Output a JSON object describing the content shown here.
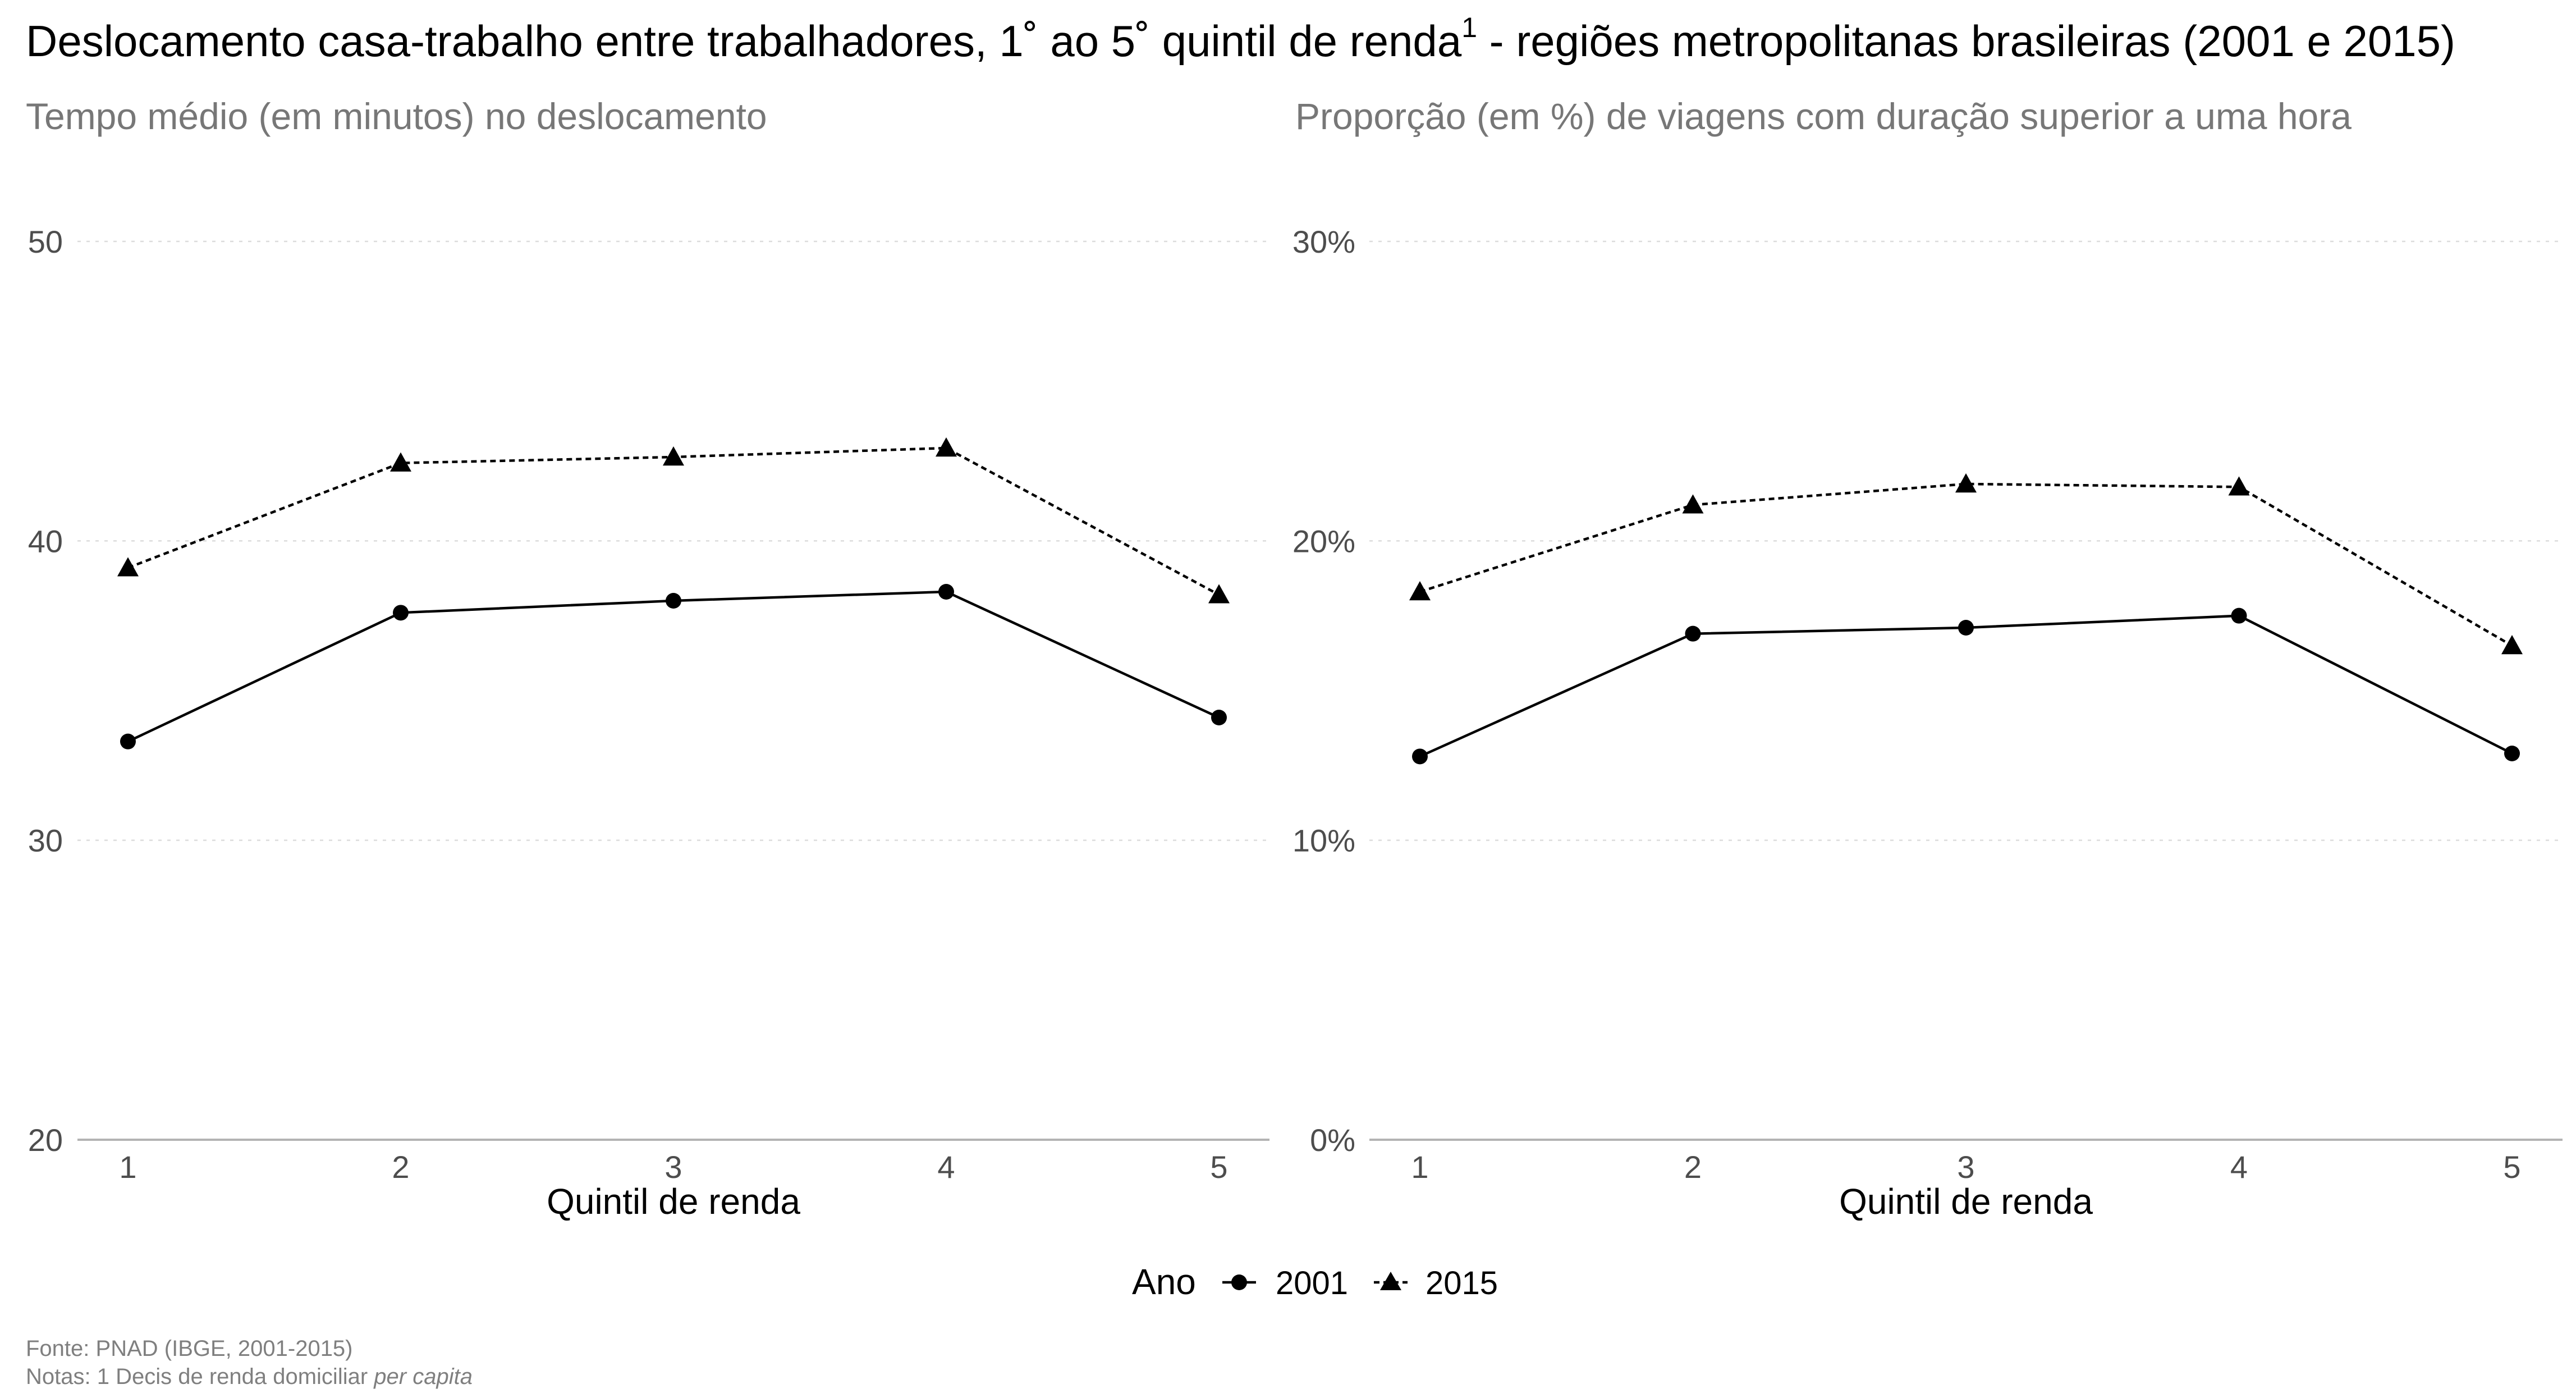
{
  "title": {
    "main": "Deslocamento casa-trabalho entre trabalhadores, 1˚ ao 5˚ quintil de renda",
    "superscript": "1",
    "suffix": " - regiões metropolitanas brasileiras (2001 e 2015)"
  },
  "legend": {
    "title": "Ano",
    "items": [
      "2001",
      "2015"
    ]
  },
  "caption": {
    "source": "Fonte: PNAD (IBGE, 2001-2015)",
    "notes_prefix": "Notas: 1 Decis de renda domiciliar ",
    "notes_italic": "per capita"
  },
  "chart_data": [
    {
      "type": "line",
      "subtitle": "Tempo médio (em minutos) no deslocamento",
      "xlabel": "Quintil de renda",
      "ylabel": "",
      "x": [
        1,
        2,
        3,
        4,
        5
      ],
      "ylim": [
        20,
        50
      ],
      "yticks": [
        20,
        30,
        40,
        50
      ],
      "ytick_labels": [
        "20",
        "30",
        "40",
        "50"
      ],
      "grid": true,
      "series": [
        {
          "name": "2001",
          "marker": "circle",
          "line": "solid",
          "values": [
            33.3,
            37.6,
            38.0,
            38.3,
            34.1
          ]
        },
        {
          "name": "2015",
          "marker": "triangle",
          "line": "dashed",
          "values": [
            39.1,
            42.6,
            42.8,
            43.1,
            38.2
          ]
        }
      ]
    },
    {
      "type": "line",
      "subtitle": "Proporção (em %) de viagens com duração superior a uma hora",
      "xlabel": "Quintil de renda",
      "ylabel": "",
      "x": [
        1,
        2,
        3,
        4,
        5
      ],
      "ylim": [
        0,
        30
      ],
      "yticks": [
        0,
        10,
        20,
        30
      ],
      "ytick_labels": [
        "0%",
        "10%",
        "20%",
        "30%"
      ],
      "grid": true,
      "series": [
        {
          "name": "2001",
          "marker": "circle",
          "line": "solid",
          "values": [
            12.8,
            16.9,
            17.1,
            17.5,
            12.9
          ]
        },
        {
          "name": "2015",
          "marker": "triangle",
          "line": "dashed",
          "values": [
            18.3,
            21.2,
            21.9,
            21.8,
            16.5
          ]
        }
      ]
    }
  ]
}
